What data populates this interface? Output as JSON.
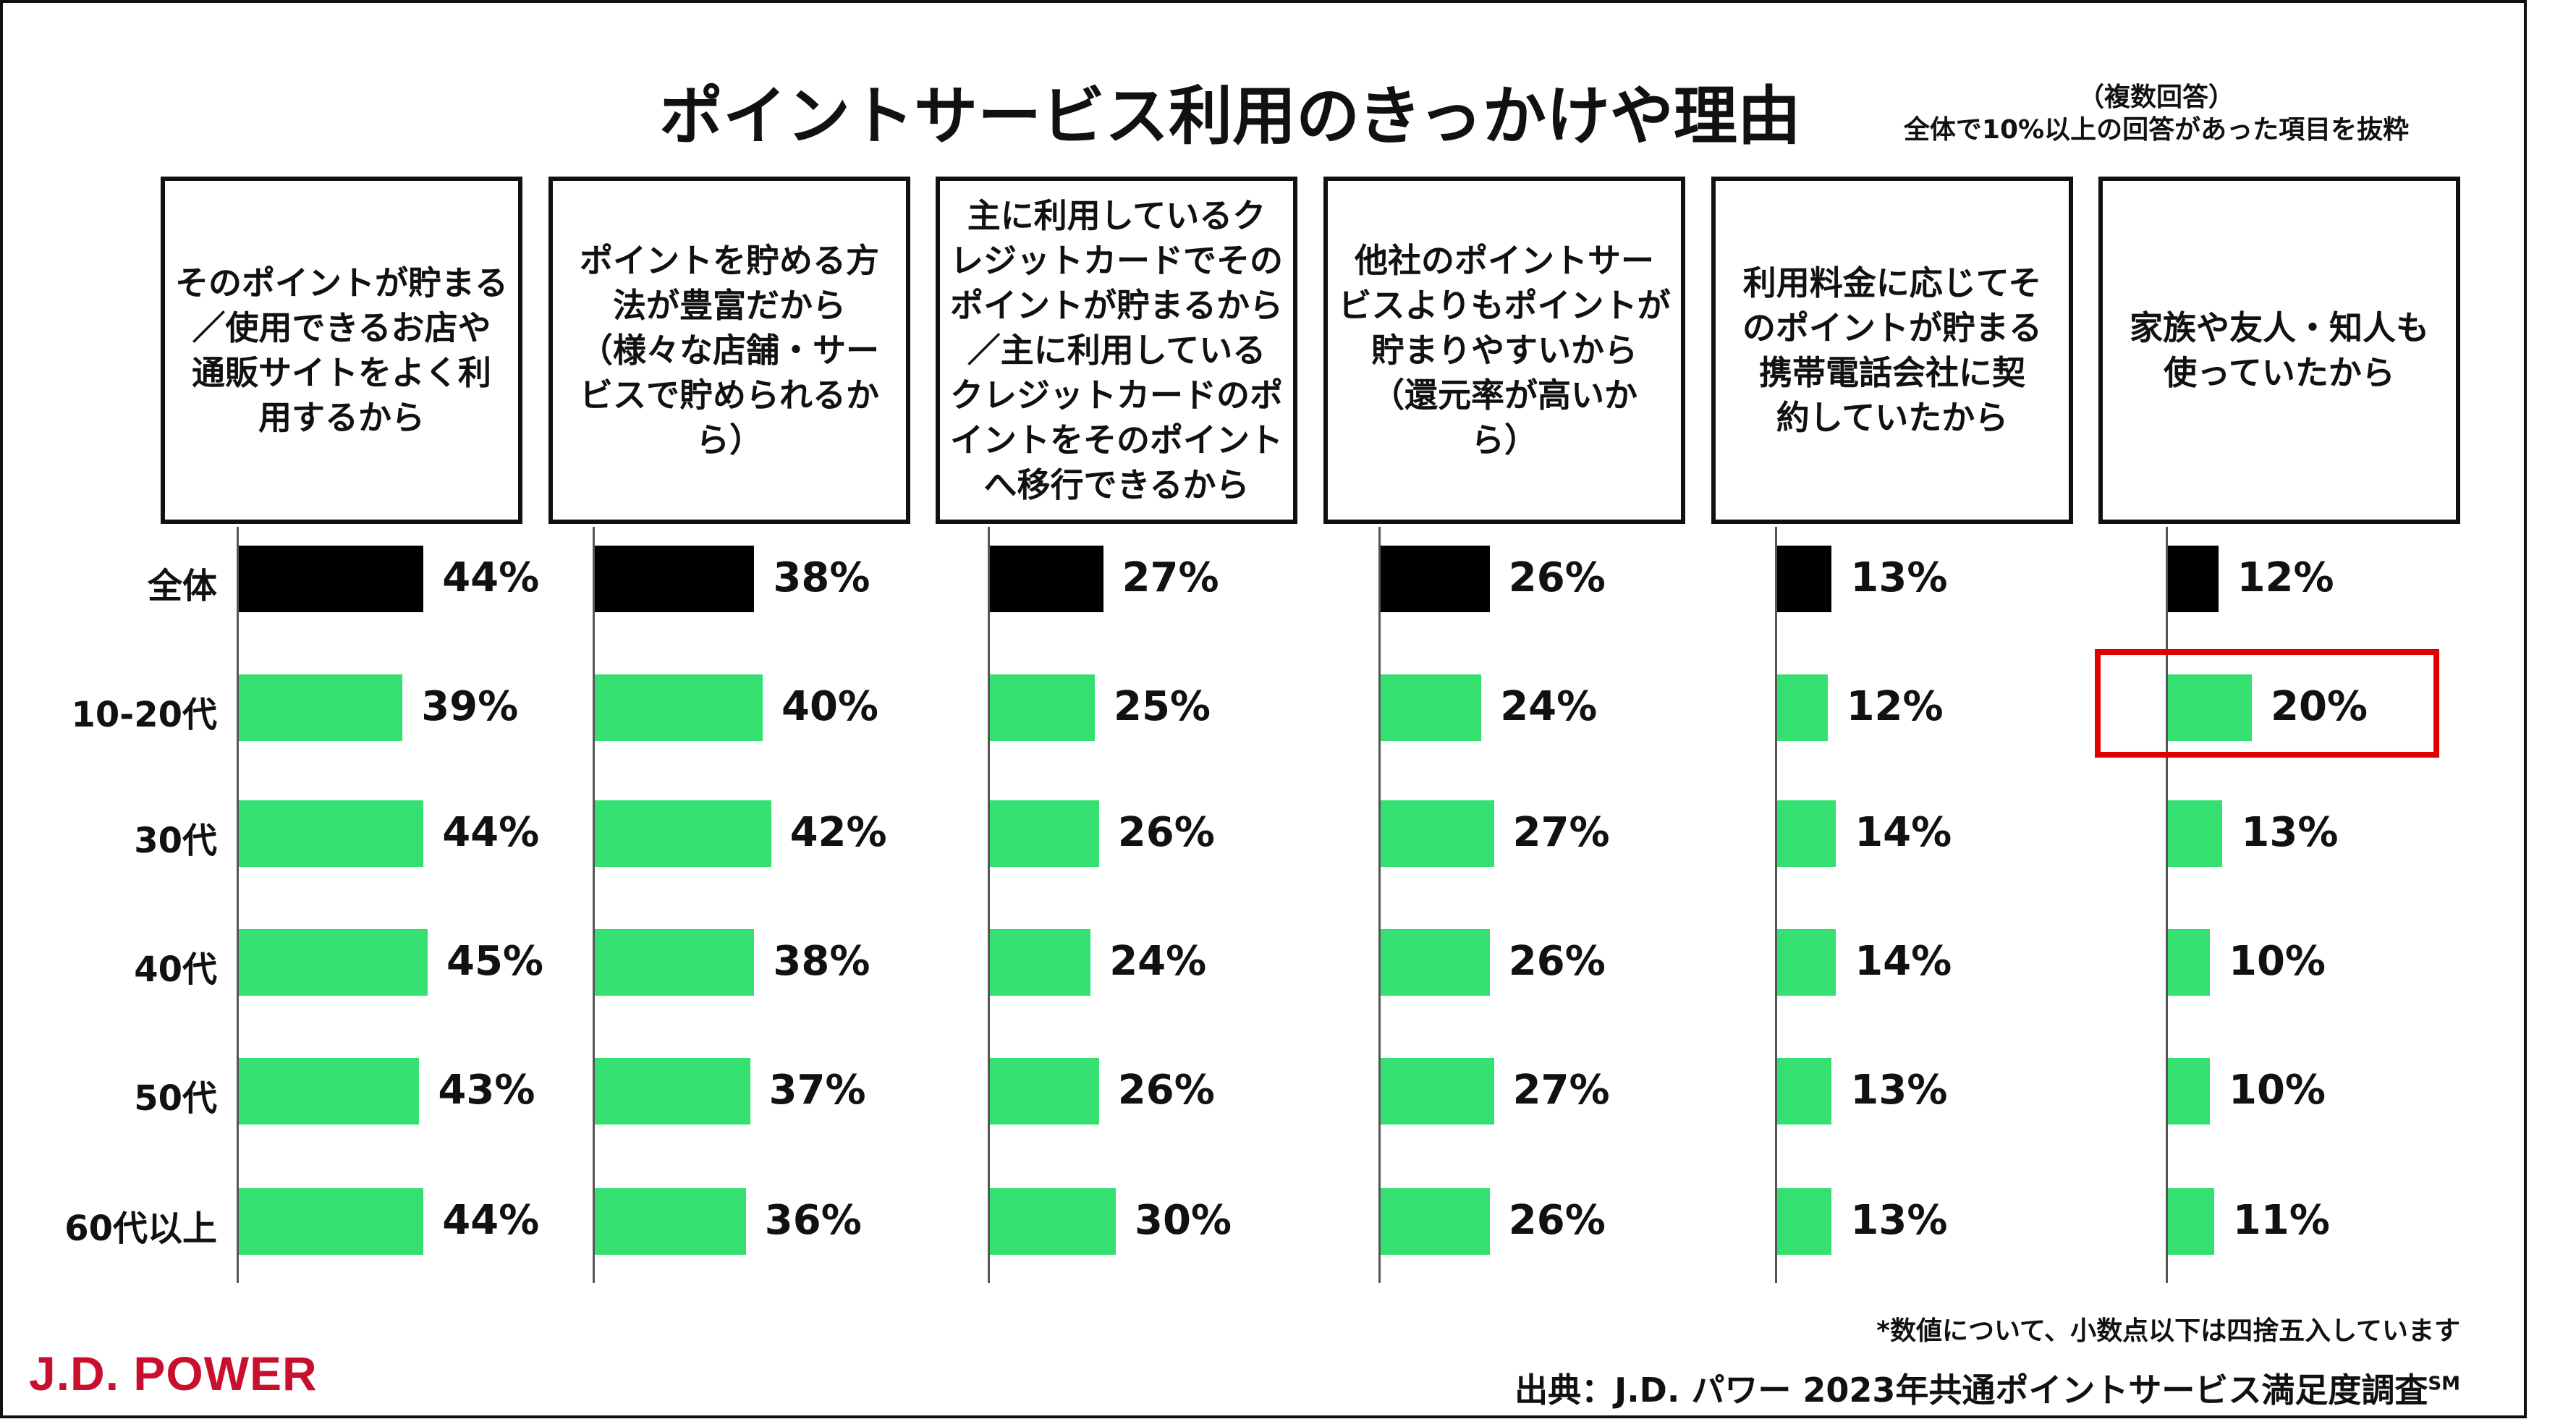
{
  "chart_data": {
    "type": "bar",
    "orientation": "horizontal",
    "title": "ポイントサービス利用のきっかけや理由",
    "notes": [
      "（複数回答）",
      "全体で10%以上の回答があった項目を抜粋"
    ],
    "categories": [
      "全体",
      "10-20代",
      "30代",
      "40代",
      "50代",
      "60代以上"
    ],
    "series": [
      {
        "name": "そのポイントが貯まる\n／使用できるお店や\n通販サイトをよく利\n用するから",
        "values": [
          44,
          39,
          44,
          45,
          43,
          44
        ]
      },
      {
        "name": "ポイントを貯める方\n法が豊富だから\n（様々な店舗・サー\nビスで貯められるか\nら）",
        "values": [
          38,
          40,
          42,
          38,
          37,
          36
        ]
      },
      {
        "name": "主に利用しているク\nレジットカードでその\nポイントが貯まるから\n／主に利用している\nクレジットカードのポ\nイントをそのポイント\nへ移行できるから",
        "values": [
          27,
          25,
          26,
          24,
          26,
          30
        ]
      },
      {
        "name": "他社のポイントサー\nビスよりもポイントが\n貯まりやすいから\n（還元率が高いか\nら）",
        "values": [
          26,
          24,
          27,
          26,
          27,
          26
        ]
      },
      {
        "name": "利用料金に応じてそ\nのポイントが貯まる\n携帯電話会社に契\n約していたから",
        "values": [
          13,
          12,
          14,
          14,
          13,
          13
        ]
      },
      {
        "name": "家族や友人・知人も\n使っていたから",
        "values": [
          12,
          20,
          13,
          10,
          10,
          11
        ]
      }
    ],
    "highlight": {
      "series_index": 5,
      "category": "10-20代"
    },
    "value_suffix": "%",
    "colors": {
      "total": "#000000",
      "segment": "#33e070",
      "highlight_box": "#e00000"
    }
  },
  "footnote": "*数値について、小数点以下は四捨五入しています",
  "source": "出典：J.D. パワー 2023年共通ポイントサービス満足度調査",
  "source_mark": "SM",
  "logo": {
    "text": "J.D. POWER",
    "color": "#c8102e"
  }
}
